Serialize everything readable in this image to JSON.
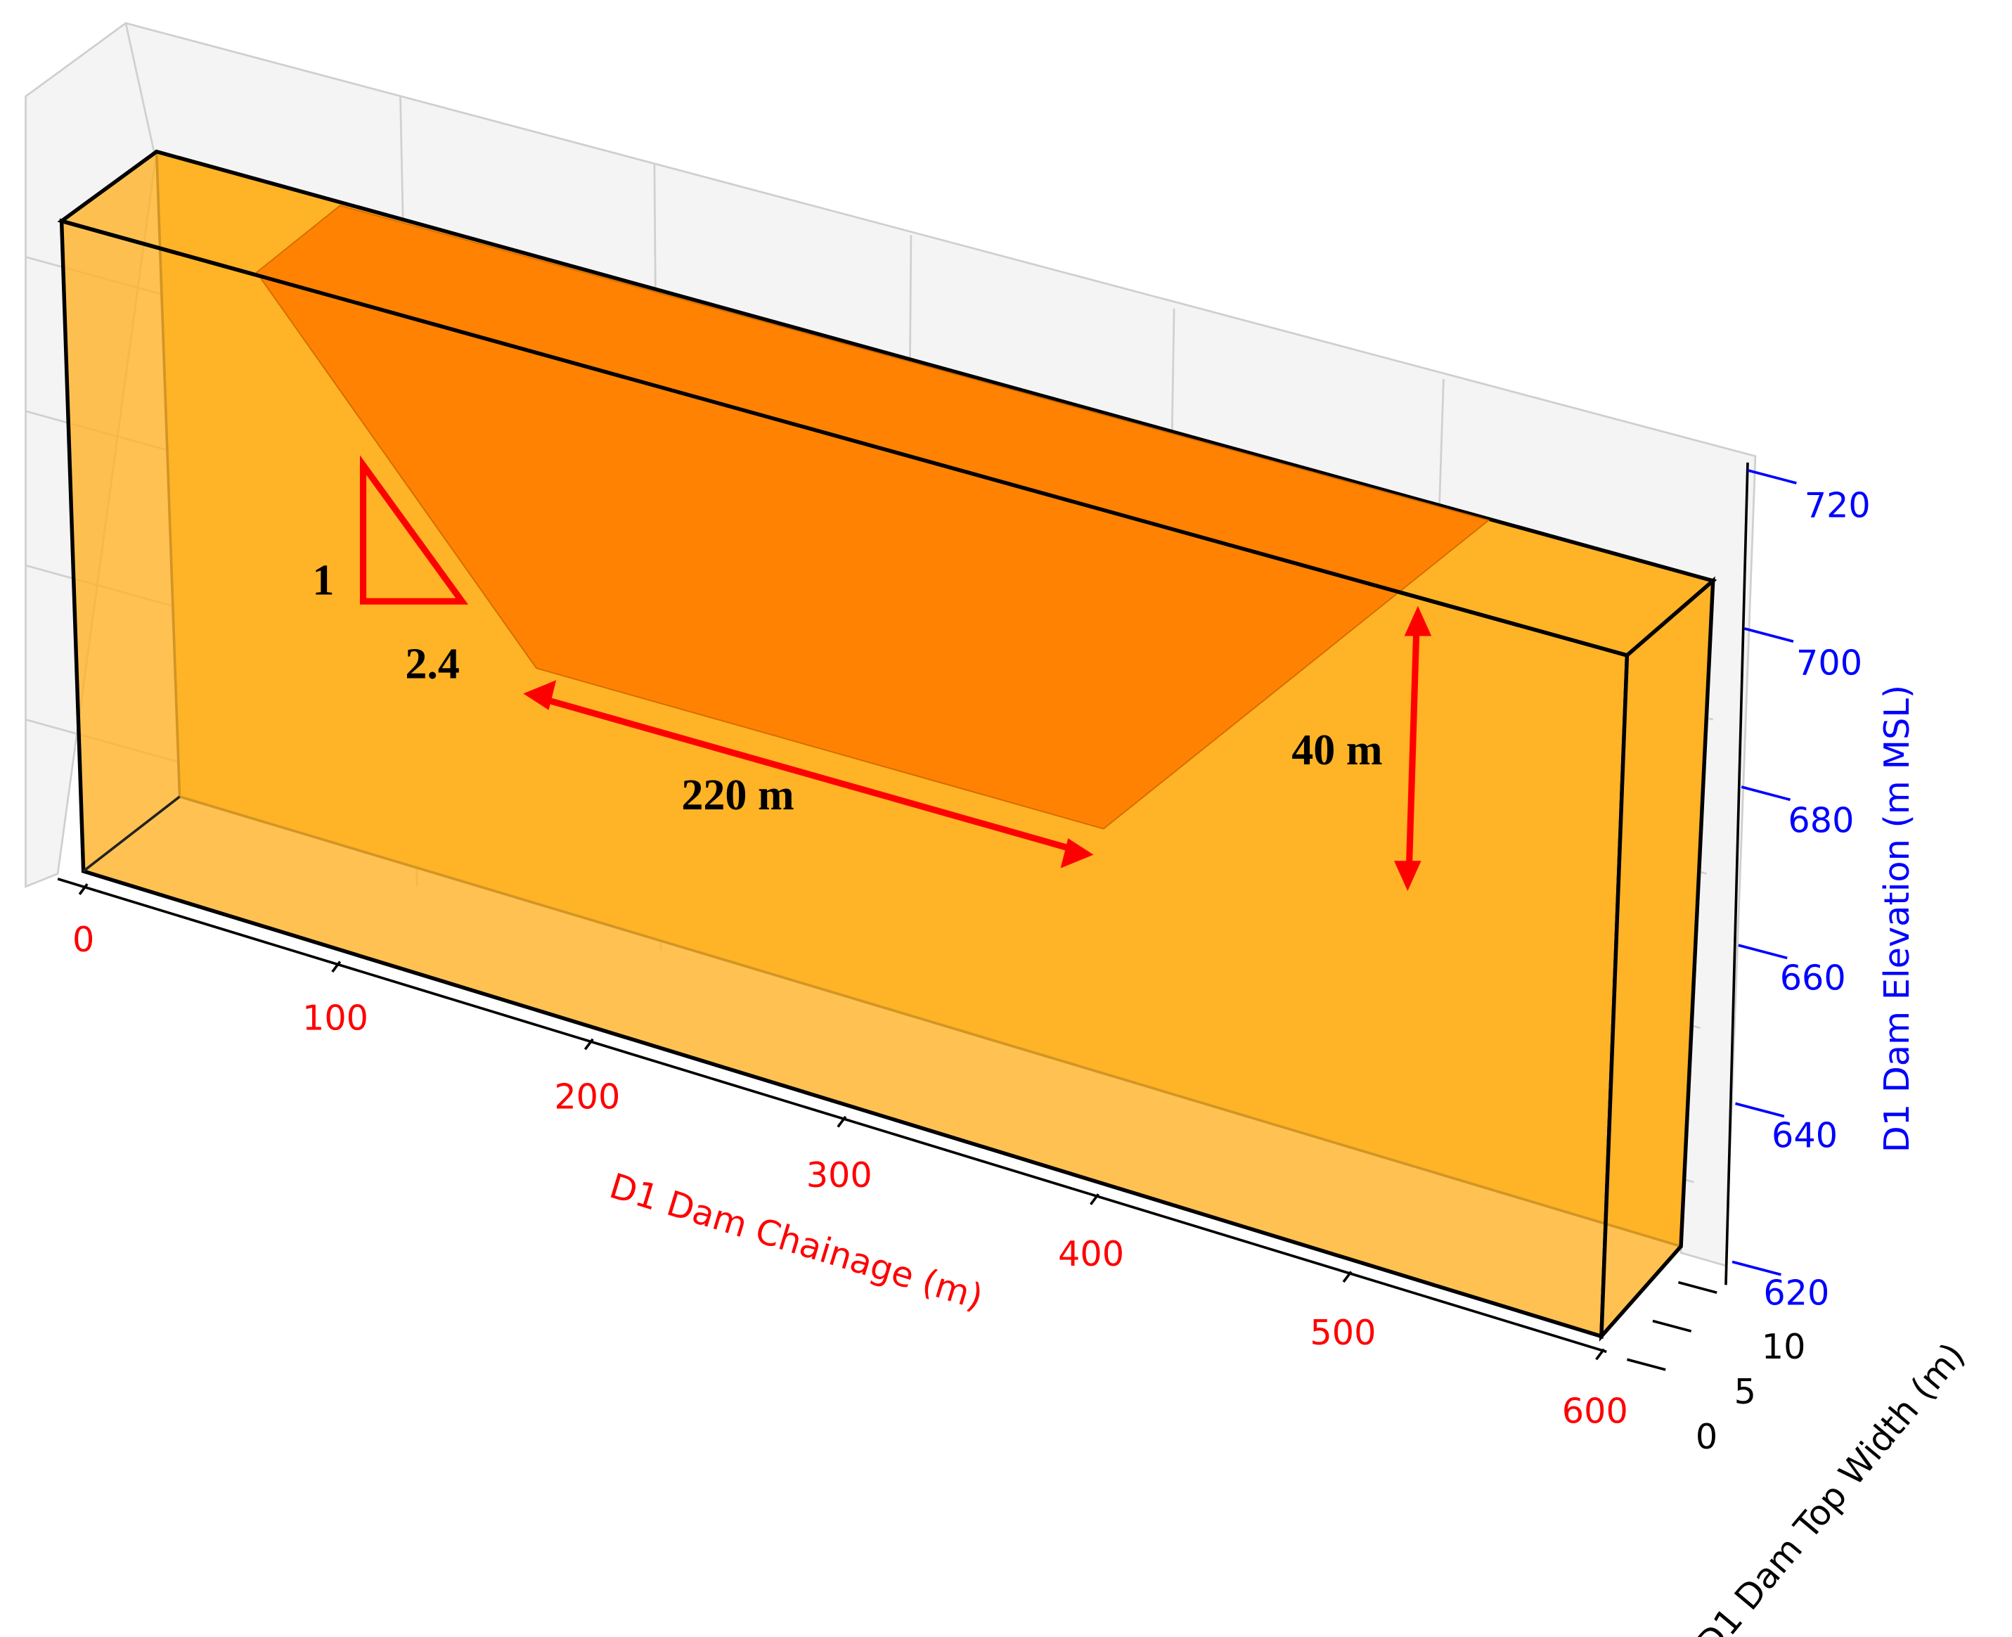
{
  "chart_data": {
    "type": "box3d",
    "x_label": "D1 Dam Chainage (m)",
    "y_label": "D1 Dam Top Width (m)",
    "z_label": "D1 Dam Elevation (m MSL)",
    "xlim": [
      0,
      600
    ],
    "xticks": [
      0,
      100,
      200,
      300,
      400,
      500,
      600
    ],
    "x_color": "#ff0000",
    "ylim": [
      0,
      10
    ],
    "yticks": [
      0,
      5,
      10
    ],
    "y_color": "#000000",
    "zlim": [
      620,
      720
    ],
    "zticks": [
      620,
      640,
      660,
      680,
      700,
      720
    ],
    "z_color": "#0000ff",
    "box_color": "#ffb327",
    "notch_color": "#ff7f00",
    "annotations": [
      "1",
      "2.4",
      "220 m",
      "40 m"
    ]
  }
}
